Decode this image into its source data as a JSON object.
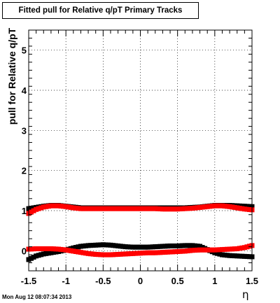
{
  "title": "Fitted pull for Relative q/pT  Primary Tracks",
  "timestamp": "Mon Aug 12 08:07:34 2013",
  "chart_data": {
    "type": "scatter",
    "xlabel": "η",
    "ylabel": "pull for Relative q/pT",
    "xlim": [
      -1.5,
      1.5
    ],
    "ylim": [
      -0.5,
      5.5
    ],
    "x_ticks": [
      "-1.5",
      "-1",
      "-0.5",
      "0",
      "0.5",
      "1",
      "1.5"
    ],
    "y_ticks": [
      "0",
      "1",
      "2",
      "3",
      "4",
      "5"
    ],
    "grid": true,
    "series": [
      {
        "color": "#000000",
        "marker": "square",
        "x": [
          -1.5,
          -1.4,
          -1.3,
          -1.2,
          -1.1,
          -1.0,
          -0.9,
          -0.8,
          -0.7,
          -0.6,
          -0.5,
          -0.4,
          -0.3,
          -0.2,
          -0.1,
          0.0,
          0.1,
          0.2,
          0.3,
          0.4,
          0.5,
          0.6,
          0.7,
          0.8,
          0.9,
          1.0,
          1.1,
          1.2,
          1.3,
          1.4,
          1.5
        ],
        "y": [
          1.05,
          1.08,
          1.11,
          1.13,
          1.13,
          1.11,
          1.09,
          1.07,
          1.07,
          1.07,
          1.07,
          1.07,
          1.07,
          1.07,
          1.07,
          1.07,
          1.07,
          1.07,
          1.07,
          1.07,
          1.07,
          1.07,
          1.08,
          1.09,
          1.11,
          1.13,
          1.13,
          1.13,
          1.12,
          1.11,
          1.1
        ]
      },
      {
        "color": "#ff0000",
        "marker": "square",
        "x": [
          -1.5,
          -1.4,
          -1.3,
          -1.2,
          -1.1,
          -1.0,
          -0.9,
          -0.8,
          -0.7,
          -0.6,
          -0.5,
          -0.4,
          -0.3,
          -0.2,
          -0.1,
          0.0,
          0.1,
          0.2,
          0.3,
          0.4,
          0.5,
          0.6,
          0.7,
          0.8,
          0.9,
          1.0,
          1.1,
          1.2,
          1.3,
          1.4,
          1.5
        ],
        "y": [
          0.93,
          1.03,
          1.09,
          1.12,
          1.12,
          1.1,
          1.07,
          1.05,
          1.05,
          1.05,
          1.05,
          1.05,
          1.05,
          1.05,
          1.05,
          1.05,
          1.05,
          1.05,
          1.04,
          1.04,
          1.04,
          1.05,
          1.06,
          1.08,
          1.1,
          1.12,
          1.12,
          1.1,
          1.07,
          1.04,
          1.02
        ]
      },
      {
        "color": "#000000",
        "marker": "square",
        "x": [
          -1.5,
          -1.4,
          -1.3,
          -1.2,
          -1.1,
          -1.0,
          -0.9,
          -0.8,
          -0.7,
          -0.6,
          -0.5,
          -0.4,
          -0.3,
          -0.2,
          -0.1,
          0.0,
          0.1,
          0.2,
          0.3,
          0.4,
          0.5,
          0.6,
          0.7,
          0.8,
          0.9,
          1.0,
          1.1,
          1.2,
          1.3,
          1.4,
          1.5
        ],
        "y": [
          -0.22,
          -0.13,
          -0.08,
          -0.05,
          -0.02,
          0.02,
          0.07,
          0.11,
          0.13,
          0.14,
          0.15,
          0.14,
          0.12,
          0.1,
          0.09,
          0.09,
          0.09,
          0.1,
          0.11,
          0.12,
          0.12,
          0.13,
          0.13,
          0.11,
          0.03,
          -0.05,
          -0.1,
          -0.12,
          -0.13,
          -0.14,
          -0.15
        ]
      },
      {
        "color": "#ff0000",
        "marker": "square",
        "x": [
          -1.5,
          -1.4,
          -1.3,
          -1.2,
          -1.1,
          -1.0,
          -0.9,
          -0.8,
          -0.7,
          -0.6,
          -0.5,
          -0.4,
          -0.3,
          -0.2,
          -0.1,
          0.0,
          0.1,
          0.2,
          0.3,
          0.4,
          0.5,
          0.6,
          0.7,
          0.8,
          0.9,
          1.0,
          1.1,
          1.2,
          1.3,
          1.4,
          1.5
        ],
        "y": [
          0.04,
          0.05,
          0.05,
          0.05,
          0.04,
          0.02,
          -0.01,
          -0.04,
          -0.07,
          -0.09,
          -0.1,
          -0.1,
          -0.09,
          -0.08,
          -0.07,
          -0.06,
          -0.05,
          -0.05,
          -0.04,
          -0.03,
          -0.02,
          -0.01,
          0.01,
          0.02,
          0.02,
          0.02,
          0.03,
          0.04,
          0.05,
          0.08,
          0.13
        ]
      }
    ]
  }
}
